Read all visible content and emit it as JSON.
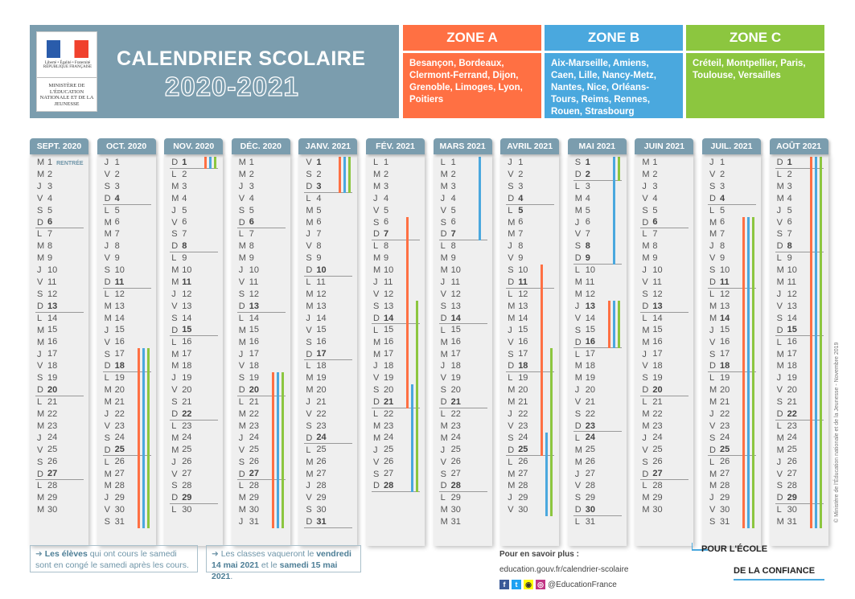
{
  "header": {
    "rf_motto": "Liberté • Égalité • Fraternité",
    "rf_name": "RÉPUBLIQUE FRANÇAISE",
    "ministry": "MINISTÈRE DE L'ÉDUCATION NATIONALE ET DE LA JEUNESSE",
    "title": "CALENDRIER SCOLAIRE",
    "year": "2020-2021"
  },
  "zones": [
    {
      "name": "ZONE A",
      "color": "#ff7043",
      "head": "#ff7043",
      "cities": "Besançon, Bordeaux, Clermont-Ferrand, Dijon, Grenoble, Limoges, Lyon, Poitiers"
    },
    {
      "name": "ZONE B",
      "color": "#4aa8de",
      "head": "#4aa8de",
      "cities": "Aix-Marseille, Amiens, Caen, Lille, Nancy-Metz, Nantes, Nice, Orléans-Tours, Reims, Rennes, Rouen, Strasbourg"
    },
    {
      "name": "ZONE C",
      "color": "#8cc63f",
      "head": "#8cc63f",
      "cities": "Créteil, Montpellier, Paris, Toulouse, Versailles"
    }
  ],
  "months": [
    {
      "name": "SEPT. 2020",
      "letters": "MMJVSDLMMJVSDLMMJVSDLMMJVSDLMM",
      "bold": [],
      "note_day": 1,
      "note": "RENTRÉE",
      "bars": {}
    },
    {
      "name": "OCT. 2020",
      "letters": "JVSDLMMJVSDLMMJVSDLMMJVSDLMMJVS",
      "bold": [],
      "bars": {
        "A": [
          [
            17,
            31
          ]
        ],
        "B": [
          [
            17,
            31
          ]
        ],
        "C": [
          [
            17,
            31
          ]
        ]
      }
    },
    {
      "name": "NOV. 2020",
      "letters": "DLMMJVSDLMMJVSDLMMJVSDLMMJVSDL",
      "bold": [
        11
      ],
      "bars": {
        "A": [
          [
            1,
            1
          ]
        ],
        "B": [
          [
            1,
            1
          ]
        ],
        "C": [
          [
            1,
            1
          ]
        ]
      }
    },
    {
      "name": "DÉC. 2020",
      "letters": "MMJVSDLMMJVSDLMMJVSDLMMJVSDLMMJ",
      "bold": [],
      "bars": {
        "A": [
          [
            19,
            31
          ]
        ],
        "B": [
          [
            19,
            31
          ]
        ],
        "C": [
          [
            19,
            31
          ]
        ]
      }
    },
    {
      "name": "JANV. 2021",
      "letters": "VSDLMMJVSDLMMJVSDLMMJVSDLMMJVSD",
      "bold": [
        1
      ],
      "bars": {
        "A": [
          [
            1,
            3
          ]
        ],
        "B": [
          [
            1,
            3
          ]
        ],
        "C": [
          [
            1,
            3
          ]
        ]
      }
    },
    {
      "name": "FÉV. 2021",
      "letters": "LMMJVSDLMMJVSDLMMJVSDLMMJVSD",
      "bold": [],
      "bars": {
        "A": [
          [
            6,
            21
          ]
        ],
        "B": [
          [
            20,
            28
          ]
        ],
        "C": [
          [
            13,
            28
          ]
        ]
      }
    },
    {
      "name": "MARS 2021",
      "letters": "LMMJVSDLMMJVSDLMMJVSDLMMJVSDLMM",
      "bold": [],
      "bars": {
        "B": [
          [
            1,
            7
          ]
        ]
      }
    },
    {
      "name": "AVRIL 2021",
      "letters": "JVSDLMMJVSDLMMJVSDLMMJVSDLMMJV",
      "bold": [
        5
      ],
      "bars": {
        "A": [
          [
            10,
            25
          ]
        ],
        "B": [
          [
            24,
            30
          ]
        ],
        "C": [
          [
            17,
            30
          ]
        ]
      }
    },
    {
      "name": "MAI 2021",
      "letters": "SDLMMJVSDLMMJVSDLMMJVSDLMMJVSDL",
      "bold": [
        1,
        8,
        13,
        24
      ],
      "bars": {
        "A": [
          [
            13,
            16
          ]
        ],
        "B": [
          [
            1,
            9
          ],
          [
            13,
            16
          ]
        ],
        "C": [
          [
            1,
            2
          ],
          [
            13,
            16
          ]
        ]
      }
    },
    {
      "name": "JUIN 2021",
      "letters": "MMJVSDLMMJVSDLMMJVSDLMMJVSDLMM",
      "bold": [],
      "bars": {}
    },
    {
      "name": "JUIL. 2021",
      "letters": "JVSDLMMJVSDLMMJVSDLMMJVSDLMMJVS",
      "bold": [
        14
      ],
      "bars": {
        "A": [
          [
            6,
            31
          ]
        ],
        "B": [
          [
            6,
            31
          ]
        ],
        "C": [
          [
            6,
            31
          ]
        ]
      }
    },
    {
      "name": "AOÛT 2021",
      "letters": "DLMMJVSDLMMJVSDLMMJVSDLMMJVSDLM",
      "bold": [],
      "bars": {
        "A": [
          [
            1,
            31
          ]
        ],
        "B": [
          [
            1,
            31
          ]
        ],
        "C": [
          [
            1,
            31
          ]
        ]
      }
    }
  ],
  "notes": [
    {
      "bold1": "Les élèves",
      "text1": " qui ont cours le samedi sont en congé le samedi après les cours."
    },
    {
      "text1": "Les classes vaqueront le ",
      "bold1": "vendredi 14 mai 2021",
      "text2": " et le ",
      "bold2": "samedi 15 mai 2021",
      "text3": "."
    }
  ],
  "info": {
    "title": "Pour en savoir plus :",
    "url": "education.gouv.fr/calendrier-scolaire",
    "handle": "@EducationFrance"
  },
  "slogan": {
    "line1": "POUR L'ÉCOLE",
    "line2": "DE LA CONFIANCE"
  },
  "copyright": "© Ministère de l'Éducation nationale et de la Jeunesse - Novembre 2019"
}
